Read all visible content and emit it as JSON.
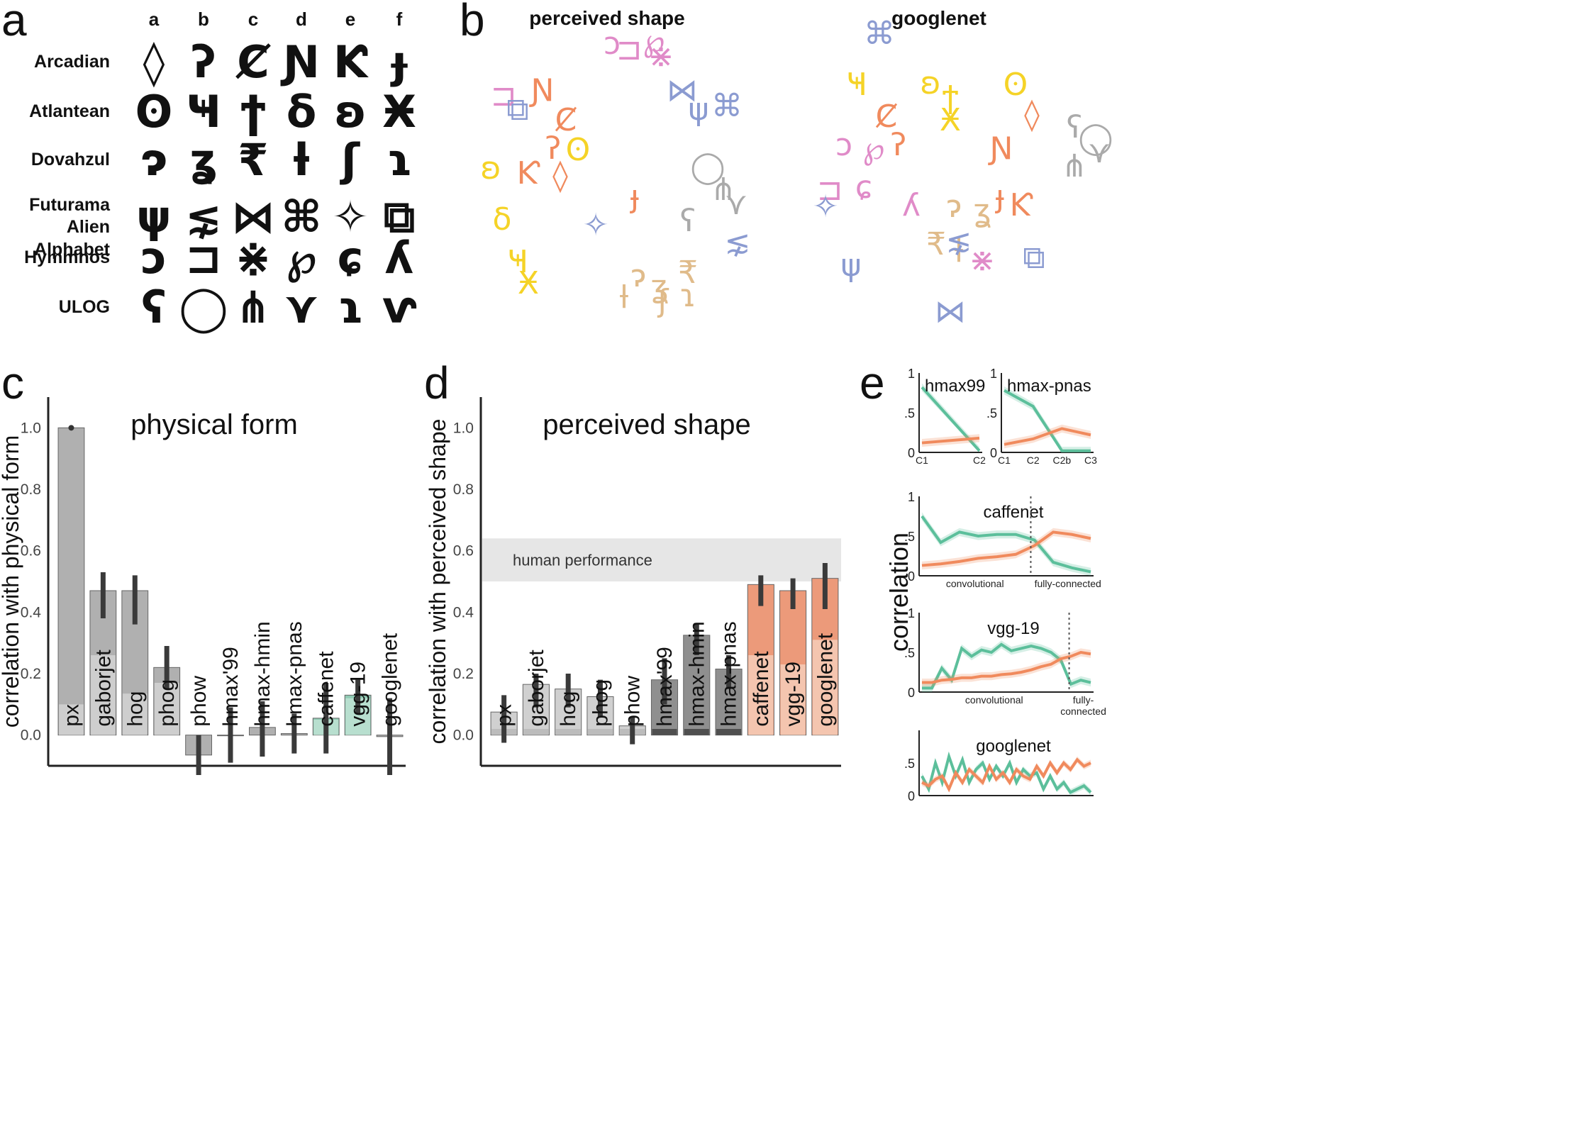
{
  "panels": {
    "a": "a",
    "b": "b",
    "c": "c",
    "d": "d",
    "e": "e"
  },
  "panel_a": {
    "columns": [
      "a",
      "b",
      "c",
      "d",
      "e",
      "f"
    ],
    "scripts": [
      {
        "name": "Arcadian",
        "glyphs": [
          "◊",
          "ʔ",
          "Ȼ",
          "Ɲ",
          "Ƙ",
          "ɟ"
        ]
      },
      {
        "name": "Atlantean",
        "glyphs": [
          "ʘ",
          "Ҹ",
          "ϯ",
          "δ",
          "ʚ",
          "Ӿ"
        ]
      },
      {
        "name": "Dovahzul",
        "glyphs": [
          "ɂ",
          "ʓ",
          "₹",
          "ƚ",
          "ʃ",
          "ɿ"
        ]
      },
      {
        "name": "Futurama\nAlien Alphabet",
        "glyphs": [
          "ψ",
          "⋦",
          "⋈",
          "⌘",
          "✧",
          "⧉"
        ]
      },
      {
        "name": "Hymmnos",
        "glyphs": [
          "ɔ",
          "⊐",
          "⋇",
          "℘",
          "ɕ",
          "ʎ"
        ]
      },
      {
        "name": "ULOG",
        "glyphs": [
          "ʕ",
          "◯",
          "⋔",
          "⋎",
          "ɿ",
          "ⱱ"
        ]
      }
    ]
  },
  "panel_b": {
    "titles": [
      "perceived shape",
      "googlenet"
    ],
    "colors": {
      "Arcadian": "#f08a5d",
      "Atlantean": "#f5d327",
      "Dovahzul": "#e0bb8a",
      "Futurama": "#8b9bd1",
      "Hymmnos": "#e08bc8",
      "ULOG": "#aaaaaa"
    }
  },
  "chart_data": [
    {
      "type": "bar",
      "panel": "c",
      "title": "physical form",
      "ylabel": "correlation with physical form",
      "ylim": [
        -0.1,
        1.1
      ],
      "yticks": [
        "0.0",
        "0.2",
        "0.4",
        "0.6",
        "0.8",
        "1.0"
      ],
      "categories": [
        "px",
        "gaborjet",
        "hog",
        "phog",
        "phow",
        "hmax'99",
        "hmax-hmin",
        "hmax-pnas",
        "caffenet",
        "vgg-19",
        "googlenet"
      ],
      "values": [
        1.0,
        0.47,
        0.47,
        0.22,
        -0.065,
        0.0,
        0.025,
        0.005,
        0.055,
        0.13,
        -0.005
      ],
      "ci_low": [
        1.0,
        0.38,
        0.36,
        0.15,
        -0.13,
        -0.09,
        -0.07,
        -0.06,
        -0.06,
        0.07,
        -0.13
      ],
      "ci_high": [
        1.0,
        0.53,
        0.52,
        0.29,
        0.0,
        0.09,
        0.11,
        0.07,
        0.17,
        0.18,
        0.12
      ],
      "noise_ceiling": [
        0.1,
        0.26,
        0.135,
        0.17,
        0.0,
        0.0,
        0.0,
        0.0,
        0.05,
        0.12,
        0.0
      ],
      "colors": [
        "#b0b0b0",
        "#b0b0b0",
        "#b0b0b0",
        "#b0b0b0",
        "#b0b0b0",
        "#b0b0b0",
        "#b0b0b0",
        "#b0b0b0",
        "#8fcab3",
        "#8fcab3",
        "#b0b0b0"
      ],
      "ceiling_colors": [
        "#d4d4d4",
        "#d4d4d4",
        "#d4d4d4",
        "#d4d4d4",
        "#d4d4d4",
        "#d4d4d4",
        "#555555",
        "#555555",
        "#bfe3d4",
        "#bfe3d4",
        "#d4d4d4"
      ]
    },
    {
      "type": "bar",
      "panel": "d",
      "title": "perceived shape",
      "ylabel": "correlation with perceived shape",
      "ylim": [
        -0.1,
        1.1
      ],
      "yticks": [
        "0.0",
        "0.2",
        "0.4",
        "0.6",
        "0.8",
        "1.0"
      ],
      "band_label": "human performance",
      "band": [
        0.5,
        0.64
      ],
      "categories": [
        "px",
        "gaborjet",
        "hog",
        "phog",
        "phow",
        "hmax'99",
        "hmax-hmin",
        "hmax-pnas",
        "caffenet",
        "vgg-19",
        "googlenet"
      ],
      "values": [
        0.075,
        0.165,
        0.15,
        0.125,
        0.03,
        0.18,
        0.325,
        0.215,
        0.49,
        0.47,
        0.51
      ],
      "ci_low": [
        -0.025,
        0.09,
        0.09,
        0.06,
        -0.03,
        0.1,
        0.26,
        0.15,
        0.42,
        0.41,
        0.41
      ],
      "ci_high": [
        0.13,
        0.2,
        0.2,
        0.18,
        0.06,
        0.25,
        0.36,
        0.26,
        0.52,
        0.51,
        0.56
      ],
      "noise_ceiling": [
        0.02,
        0.02,
        0.02,
        0.02,
        0.02,
        0.02,
        0.02,
        0.02,
        0.26,
        0.23,
        0.31
      ],
      "colors": [
        "#d0d0d0",
        "#d0d0d0",
        "#d0d0d0",
        "#d0d0d0",
        "#d0d0d0",
        "#8f8f8f",
        "#8f8f8f",
        "#8f8f8f",
        "#ec9a7a",
        "#ec9a7a",
        "#ec9a7a"
      ],
      "ceiling_colors": [
        "#b9b9b9",
        "#b9b9b9",
        "#b9b9b9",
        "#b9b9b9",
        "#b9b9b9",
        "#444444",
        "#444444",
        "#444444",
        "#f6cdb8",
        "#f6cdb8",
        "#f6cdb8"
      ]
    },
    {
      "type": "line",
      "panel": "e",
      "title": "hmax99",
      "ylim": [
        0,
        1
      ],
      "yticks": [
        "0",
        ".5",
        "1"
      ],
      "x": [
        "C1",
        "C2"
      ],
      "series": [
        {
          "values": [
            0.82,
            0.02
          ],
          "color": "#5cbf9b"
        },
        {
          "values": [
            0.12,
            0.18
          ],
          "color": "#f08a5d"
        }
      ]
    },
    {
      "type": "line",
      "panel": "e",
      "title": "hmax-pnas",
      "ylim": [
        0,
        1
      ],
      "yticks": [
        "0",
        ".5",
        "1"
      ],
      "x": [
        "C1",
        "C2",
        "C2b",
        "C3"
      ],
      "series": [
        {
          "values": [
            0.78,
            0.58,
            0.02,
            0.02
          ],
          "color": "#5cbf9b"
        },
        {
          "values": [
            0.1,
            0.17,
            0.3,
            0.22
          ],
          "color": "#f08a5d"
        }
      ]
    },
    {
      "type": "line",
      "panel": "e",
      "title": "caffenet",
      "ylim": [
        0,
        1
      ],
      "yticks": [
        "0",
        ".5",
        "1"
      ],
      "xlabels": [
        "convolutional",
        "fully-connected"
      ],
      "series": [
        {
          "values": [
            0.75,
            0.42,
            0.55,
            0.5,
            0.52,
            0.52,
            0.45,
            0.17,
            0.1,
            0.05
          ],
          "color": "#5cbf9b"
        },
        {
          "values": [
            0.13,
            0.15,
            0.18,
            0.22,
            0.24,
            0.27,
            0.38,
            0.55,
            0.52,
            0.47
          ],
          "color": "#f08a5d"
        }
      ]
    },
    {
      "type": "line",
      "panel": "e",
      "title": "vgg-19",
      "ylim": [
        0,
        1
      ],
      "yticks": [
        "0",
        ".5",
        "1"
      ],
      "xlabels": [
        "convolutional",
        "fully-\nconnected"
      ],
      "series": [
        {
          "values": [
            0.05,
            0.05,
            0.3,
            0.15,
            0.55,
            0.45,
            0.53,
            0.5,
            0.6,
            0.52,
            0.55,
            0.58,
            0.55,
            0.5,
            0.4,
            0.1,
            0.15,
            0.12
          ],
          "color": "#5cbf9b"
        },
        {
          "values": [
            0.12,
            0.12,
            0.15,
            0.16,
            0.18,
            0.18,
            0.2,
            0.2,
            0.22,
            0.23,
            0.25,
            0.28,
            0.32,
            0.35,
            0.42,
            0.45,
            0.5,
            0.48
          ],
          "color": "#f08a5d"
        }
      ]
    },
    {
      "type": "line",
      "panel": "e",
      "title": "googlenet",
      "ylim": [
        0,
        1
      ],
      "yticks": [
        "0",
        ".5"
      ],
      "series": [
        {
          "values": [
            0.3,
            0.1,
            0.5,
            0.2,
            0.6,
            0.3,
            0.55,
            0.2,
            0.4,
            0.5,
            0.25,
            0.45,
            0.3,
            0.5,
            0.2,
            0.4,
            0.3,
            0.35,
            0.1,
            0.3,
            0.1,
            0.2,
            0.05,
            0.1,
            0.15,
            0.05
          ],
          "color": "#5cbf9b"
        },
        {
          "values": [
            0.2,
            0.15,
            0.25,
            0.3,
            0.1,
            0.35,
            0.2,
            0.4,
            0.3,
            0.2,
            0.45,
            0.25,
            0.35,
            0.2,
            0.4,
            0.3,
            0.25,
            0.45,
            0.3,
            0.5,
            0.35,
            0.5,
            0.4,
            0.55,
            0.45,
            0.5
          ],
          "color": "#f08a5d"
        }
      ]
    }
  ],
  "panel_e": {
    "ylabel": "correlation"
  }
}
